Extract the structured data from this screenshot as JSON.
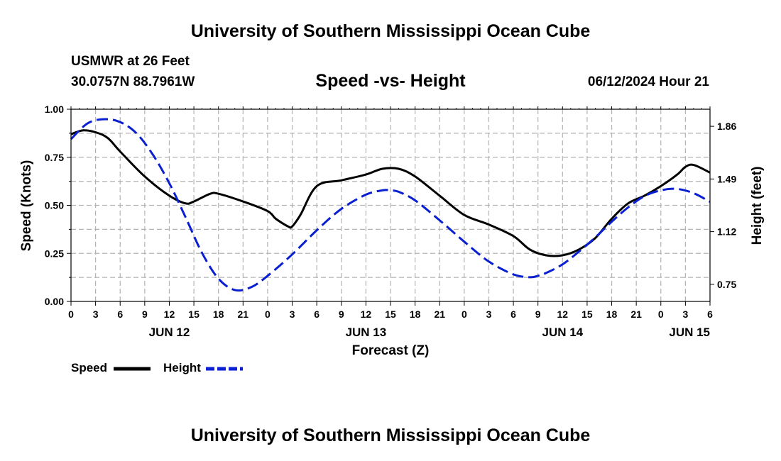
{
  "header": {
    "title": "University of Southern Mississippi Ocean Cube",
    "station": "USMWR at 26 Feet",
    "coordinates": "30.0757N  88.7961W",
    "subtitle": "Speed -vs- Height",
    "datetime": "06/12/2024 Hour 21"
  },
  "footer": {
    "title": "University of Southern Mississippi Ocean Cube"
  },
  "legend": {
    "speed_label": "Speed",
    "height_label": "Height"
  },
  "colors": {
    "speed": "#000000",
    "height": "#0a1fd0",
    "grid": "#b4b4b4"
  },
  "chart_data": {
    "type": "line",
    "title": "Speed -vs- Height",
    "xlabel": "Forecast (Z)",
    "ylabel": "Speed (Knots)",
    "y2label": "Height (feet)",
    "x_range": [
      0,
      78
    ],
    "ylim": [
      0,
      1
    ],
    "y2lim": [
      0.63,
      1.98
    ],
    "y_ticks": [
      "0.00",
      "0.25",
      "0.50",
      "0.75",
      "1.00"
    ],
    "y_tick_values": [
      0,
      0.25,
      0.5,
      0.75,
      1.0
    ],
    "y2_ticks": [
      "0.75",
      "1.12",
      "1.49",
      "1.86"
    ],
    "y2_tick_values": [
      0.75,
      1.12,
      1.49,
      1.86
    ],
    "x_tick_labels": [
      "0",
      "3",
      "6",
      "9",
      "12",
      "15",
      "18",
      "21",
      "0",
      "3",
      "6",
      "9",
      "12",
      "15",
      "18",
      "21",
      "0",
      "3",
      "6",
      "9",
      "12",
      "15",
      "18",
      "21",
      "0",
      "3",
      "6"
    ],
    "date_labels": [
      {
        "label": "JUN 12",
        "hour": 12
      },
      {
        "label": "JUN 13",
        "hour": 36
      },
      {
        "label": "JUN 14",
        "hour": 60
      },
      {
        "label": "JUN 15",
        "hour": 78
      }
    ],
    "grid": true,
    "legend_position": "bottom-left",
    "series": [
      {
        "name": "Speed",
        "axis": "left",
        "style": "solid",
        "x": [
          0,
          1.5,
          3,
          4.5,
          6,
          9,
          12,
          14,
          15,
          17,
          18,
          21,
          24,
          25,
          26.5,
          27,
          28,
          30,
          33,
          36,
          38,
          40,
          42,
          45,
          48,
          51,
          54,
          56,
          58,
          60,
          62,
          64,
          66,
          68,
          70,
          72,
          74,
          75,
          76,
          78
        ],
        "values": [
          0.87,
          0.89,
          0.88,
          0.85,
          0.78,
          0.65,
          0.55,
          0.51,
          0.52,
          0.56,
          0.56,
          0.52,
          0.47,
          0.43,
          0.39,
          0.39,
          0.45,
          0.6,
          0.63,
          0.66,
          0.69,
          0.69,
          0.65,
          0.55,
          0.45,
          0.4,
          0.34,
          0.27,
          0.24,
          0.24,
          0.27,
          0.33,
          0.43,
          0.51,
          0.55,
          0.6,
          0.66,
          0.7,
          0.71,
          0.67
        ]
      },
      {
        "name": "Height",
        "axis": "right",
        "style": "dashed",
        "x": [
          0,
          2,
          4,
          6,
          8,
          10,
          12,
          14,
          16,
          18,
          20,
          22,
          24,
          27,
          30,
          33,
          36,
          38,
          39,
          40,
          42,
          45,
          48,
          51,
          54,
          56,
          57,
          58,
          60,
          62,
          64,
          66,
          68,
          70,
          72,
          74,
          76,
          78
        ],
        "values": [
          1.77,
          1.88,
          1.91,
          1.89,
          1.81,
          1.66,
          1.46,
          1.22,
          0.97,
          0.79,
          0.71,
          0.73,
          0.81,
          0.96,
          1.13,
          1.28,
          1.38,
          1.41,
          1.41,
          1.4,
          1.34,
          1.2,
          1.05,
          0.91,
          0.82,
          0.8,
          0.81,
          0.83,
          0.89,
          0.98,
          1.08,
          1.19,
          1.29,
          1.37,
          1.41,
          1.42,
          1.39,
          1.33
        ]
      }
    ]
  }
}
